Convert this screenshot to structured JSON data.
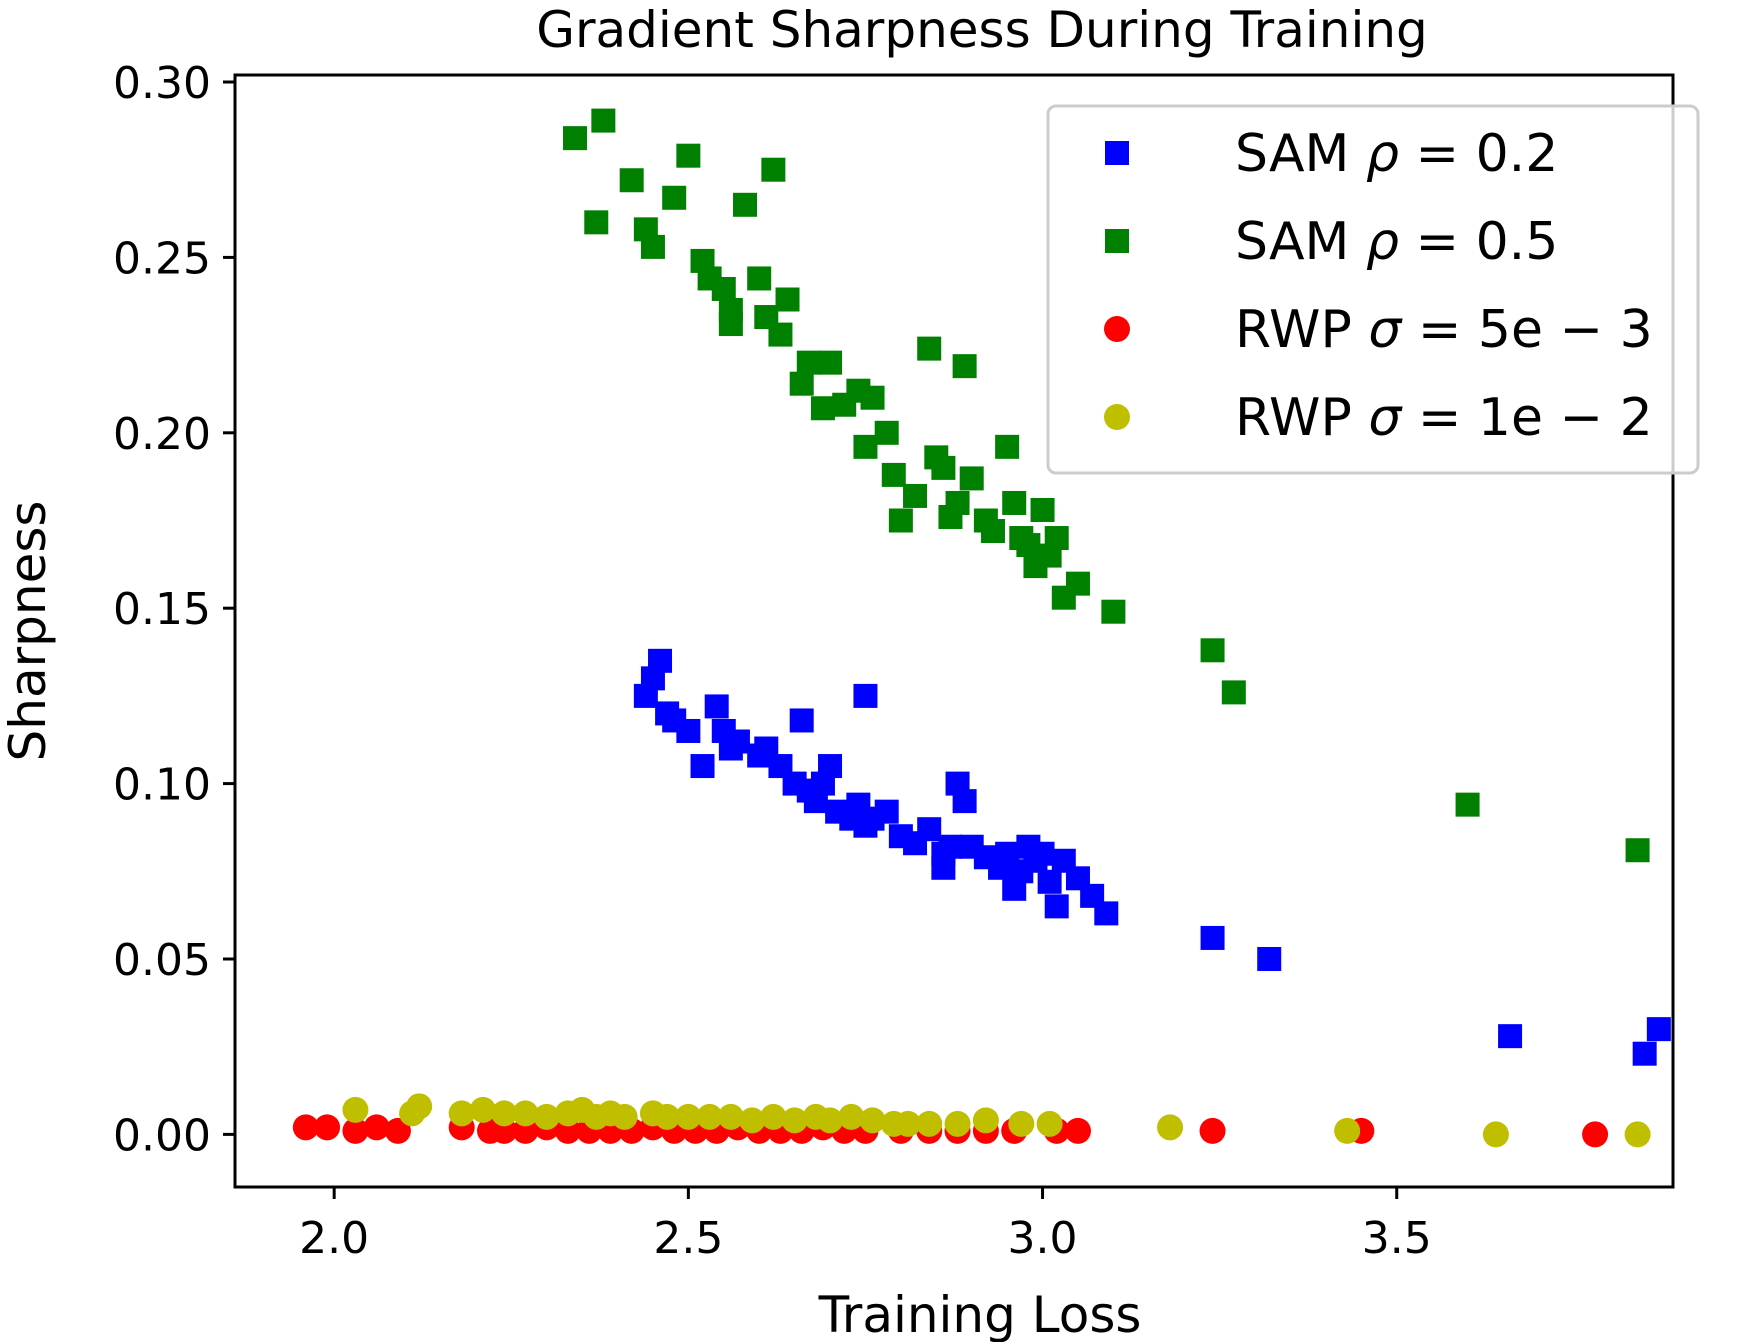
{
  "chart_data": {
    "type": "scatter",
    "title": "Gradient Sharpness During Training",
    "xlabel": "Training Loss",
    "ylabel": "Sharpness",
    "xlim": [
      1.86,
      3.89
    ],
    "ylim": [
      -0.015,
      0.302
    ],
    "xticks": [
      2.0,
      2.5,
      3.0,
      3.5
    ],
    "xtick_labels": [
      "2.0",
      "2.5",
      "3.0",
      "3.5"
    ],
    "yticks": [
      0.0,
      0.05,
      0.1,
      0.15,
      0.2,
      0.25,
      0.3
    ],
    "ytick_labels": [
      "0.00",
      "0.05",
      "0.10",
      "0.15",
      "0.20",
      "0.25",
      "0.30"
    ],
    "grid": false,
    "legend_position": "top-right",
    "series": [
      {
        "name": "SAM ρ = 0.2",
        "legend_prefix": "SAM ",
        "legend_symbol": "ρ",
        "legend_suffix": " = 0.2",
        "marker": "square",
        "color": "#0000ff",
        "x": [
          2.44,
          2.45,
          2.46,
          2.47,
          2.48,
          2.5,
          2.52,
          2.54,
          2.55,
          2.56,
          2.57,
          2.6,
          2.61,
          2.63,
          2.65,
          2.66,
          2.67,
          2.68,
          2.69,
          2.7,
          2.71,
          2.73,
          2.74,
          2.75,
          2.76,
          2.78,
          2.8,
          2.82,
          2.84,
          2.86,
          2.87,
          2.88,
          2.89,
          2.9,
          2.92,
          2.94,
          2.95,
          2.96,
          2.97,
          2.98,
          2.99,
          3.0,
          3.01,
          3.02,
          3.03,
          3.05,
          3.07,
          3.09,
          3.24,
          3.32,
          3.66,
          3.85,
          3.87,
          2.75,
          2.86
        ],
        "y": [
          0.125,
          0.13,
          0.135,
          0.12,
          0.118,
          0.115,
          0.105,
          0.122,
          0.115,
          0.11,
          0.112,
          0.108,
          0.11,
          0.105,
          0.1,
          0.118,
          0.098,
          0.095,
          0.1,
          0.105,
          0.092,
          0.09,
          0.094,
          0.088,
          0.09,
          0.092,
          0.085,
          0.083,
          0.087,
          0.08,
          0.082,
          0.1,
          0.095,
          0.082,
          0.079,
          0.076,
          0.08,
          0.07,
          0.075,
          0.082,
          0.078,
          0.08,
          0.072,
          0.065,
          0.078,
          0.073,
          0.068,
          0.063,
          0.056,
          0.05,
          0.028,
          0.023,
          0.03,
          0.125,
          0.076
        ]
      },
      {
        "name": "SAM ρ = 0.5",
        "legend_prefix": "SAM ",
        "legend_symbol": "ρ",
        "legend_suffix": " = 0.5",
        "marker": "square",
        "color": "#008000",
        "x": [
          2.34,
          2.37,
          2.38,
          2.42,
          2.44,
          2.45,
          2.48,
          2.5,
          2.52,
          2.53,
          2.55,
          2.56,
          2.58,
          2.6,
          2.61,
          2.62,
          2.63,
          2.64,
          2.66,
          2.67,
          2.69,
          2.7,
          2.72,
          2.74,
          2.75,
          2.76,
          2.78,
          2.79,
          2.8,
          2.82,
          2.84,
          2.85,
          2.86,
          2.87,
          2.88,
          2.89,
          2.9,
          2.92,
          2.93,
          2.95,
          2.96,
          2.97,
          2.98,
          2.99,
          3.0,
          3.01,
          3.02,
          3.03,
          3.05,
          3.1,
          3.24,
          3.27,
          3.6,
          3.84,
          2.56
        ],
        "y": [
          0.284,
          0.26,
          0.289,
          0.272,
          0.258,
          0.253,
          0.267,
          0.279,
          0.249,
          0.244,
          0.241,
          0.235,
          0.265,
          0.244,
          0.233,
          0.275,
          0.228,
          0.238,
          0.214,
          0.22,
          0.207,
          0.22,
          0.208,
          0.212,
          0.196,
          0.21,
          0.2,
          0.188,
          0.175,
          0.182,
          0.224,
          0.193,
          0.19,
          0.176,
          0.18,
          0.219,
          0.187,
          0.175,
          0.172,
          0.196,
          0.18,
          0.17,
          0.168,
          0.162,
          0.178,
          0.165,
          0.17,
          0.153,
          0.157,
          0.149,
          0.138,
          0.126,
          0.094,
          0.081,
          0.231
        ]
      },
      {
        "name": "RWP σ = 5e − 3",
        "legend_prefix": "RWP ",
        "legend_symbol": "σ",
        "legend_suffix": " = 5e − 3",
        "marker": "circle",
        "color": "#ff0000",
        "x": [
          1.96,
          1.99,
          2.03,
          2.06,
          2.09,
          2.18,
          2.22,
          2.24,
          2.27,
          2.3,
          2.33,
          2.36,
          2.39,
          2.42,
          2.45,
          2.48,
          2.51,
          2.54,
          2.57,
          2.6,
          2.63,
          2.66,
          2.69,
          2.72,
          2.75,
          2.8,
          2.84,
          2.88,
          2.92,
          2.96,
          3.02,
          3.05,
          3.24,
          3.45,
          3.78
        ],
        "y": [
          0.002,
          0.002,
          0.001,
          0.002,
          0.001,
          0.002,
          0.001,
          0.001,
          0.001,
          0.002,
          0.001,
          0.001,
          0.001,
          0.001,
          0.002,
          0.001,
          0.001,
          0.001,
          0.002,
          0.001,
          0.001,
          0.001,
          0.002,
          0.001,
          0.001,
          0.001,
          0.001,
          0.001,
          0.001,
          0.001,
          0.001,
          0.001,
          0.001,
          0.001,
          0.0
        ]
      },
      {
        "name": "RWP σ = 1e − 2",
        "legend_prefix": "RWP ",
        "legend_symbol": "σ",
        "legend_suffix": " = 1e − 2",
        "marker": "circle",
        "color": "#bfbf00",
        "x": [
          2.03,
          2.11,
          2.12,
          2.18,
          2.21,
          2.24,
          2.27,
          2.3,
          2.33,
          2.35,
          2.37,
          2.39,
          2.41,
          2.45,
          2.47,
          2.5,
          2.53,
          2.56,
          2.59,
          2.62,
          2.65,
          2.68,
          2.7,
          2.73,
          2.76,
          2.79,
          2.81,
          2.84,
          2.88,
          2.92,
          2.97,
          3.01,
          3.18,
          3.43,
          3.64,
          3.84
        ],
        "y": [
          0.007,
          0.006,
          0.008,
          0.006,
          0.007,
          0.006,
          0.006,
          0.005,
          0.006,
          0.007,
          0.005,
          0.006,
          0.005,
          0.006,
          0.005,
          0.005,
          0.005,
          0.005,
          0.004,
          0.005,
          0.004,
          0.005,
          0.004,
          0.005,
          0.004,
          0.003,
          0.003,
          0.003,
          0.003,
          0.004,
          0.003,
          0.003,
          0.002,
          0.001,
          0.0,
          0.0
        ]
      }
    ]
  }
}
